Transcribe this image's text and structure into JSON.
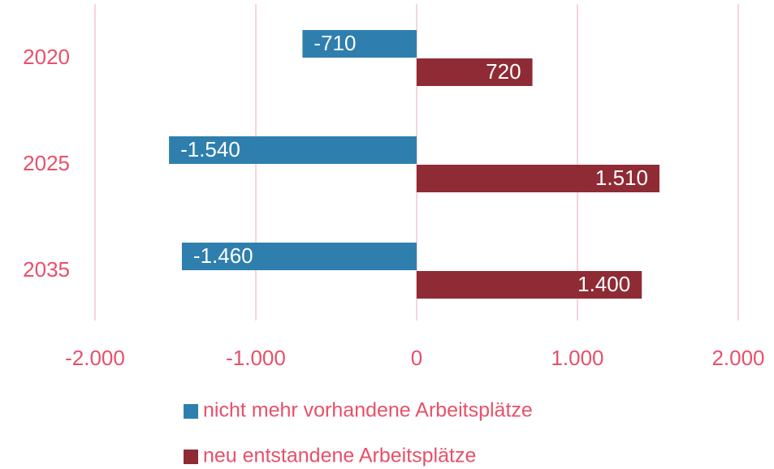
{
  "chart_data": {
    "type": "bar",
    "orientation": "horizontal",
    "categories": [
      "2020",
      "2025",
      "2035"
    ],
    "series": [
      {
        "name": "nicht mehr vorhandene Arbeitsplätze",
        "color": "#2e7fad",
        "values": [
          -710,
          -1540,
          -1460
        ],
        "value_labels": [
          "-710",
          "-1.540",
          "-1.460"
        ]
      },
      {
        "name": "neu entstandene Arbeitsplätze",
        "color": "#8f2b35",
        "values": [
          720,
          1510,
          1400
        ],
        "value_labels": [
          "720",
          "1.510",
          "1.400"
        ]
      }
    ],
    "xlim": [
      -2000,
      2000
    ],
    "xticks": [
      {
        "value": -2000,
        "label": "-2.000"
      },
      {
        "value": -1000,
        "label": "-1.000"
      },
      0,
      {
        "value": 1000,
        "label": "1.000"
      },
      {
        "value": 2000,
        "label": "2.000"
      }
    ],
    "grid": true,
    "legend": "bottom"
  }
}
